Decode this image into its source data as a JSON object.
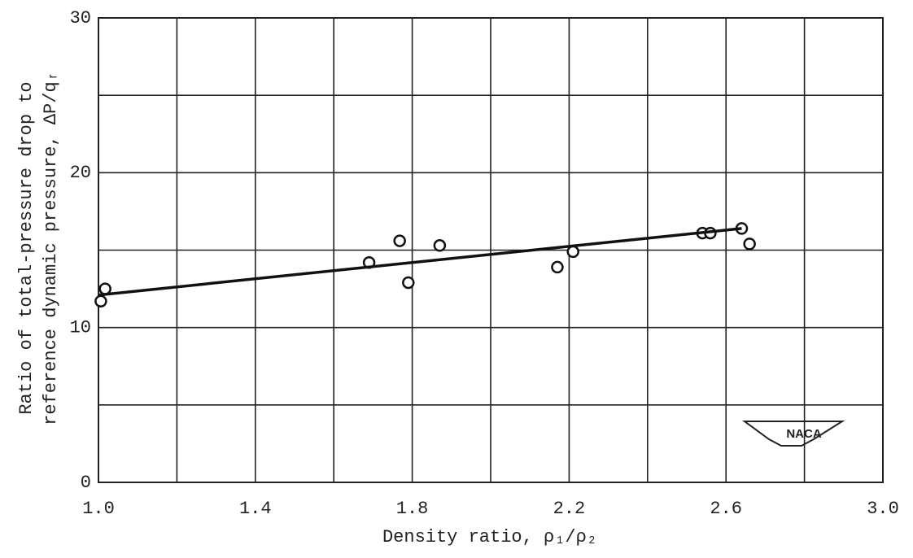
{
  "chart_data": {
    "type": "scatter",
    "xlabel": "Density ratio, ρ₁/ρ₂",
    "ylabel": [
      "Ratio of total-pressure drop to",
      "reference dynamic pressure, ΔP/qᵣ"
    ],
    "logo": "NACA",
    "xlim": [
      1.0,
      3.0
    ],
    "ylim": [
      0,
      30
    ],
    "xticks": [
      {
        "value": 1,
        "label": "1.0"
      },
      1.4,
      1.8,
      2.2,
      2.6,
      {
        "value": 3,
        "label": "3.0"
      }
    ],
    "xminor": [
      1.2,
      1.6,
      2.0,
      2.4,
      2.8
    ],
    "yticks": [
      0,
      10,
      20,
      30
    ],
    "yminor": [
      5,
      15,
      25
    ],
    "grid": true,
    "series": [
      {
        "mode": "markers",
        "color": "#111111",
        "x": [
          1.006,
          1.017,
          1.69,
          1.768,
          1.79,
          1.87,
          2.17,
          2.21,
          2.54,
          2.56,
          2.64,
          2.66
        ],
        "values": [
          11.7,
          12.5,
          14.2,
          15.6,
          12.9,
          15.3,
          13.9,
          14.9,
          16.1,
          16.1,
          16.4,
          15.4
        ]
      },
      {
        "mode": "line",
        "color": "#111111",
        "x": [
          1.0,
          2.64
        ],
        "values": [
          12.1,
          16.4
        ]
      }
    ]
  }
}
